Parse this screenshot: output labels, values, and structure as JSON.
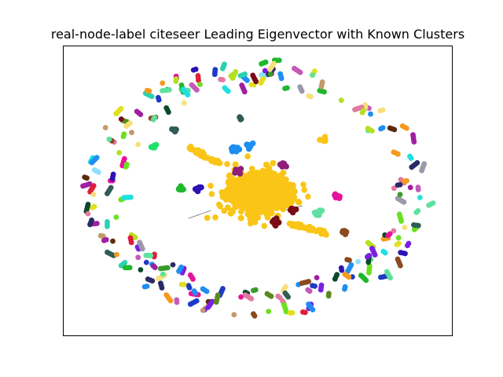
{
  "chart_data": {
    "type": "scatter",
    "subtype": "network-graph",
    "title": "real-node-label citeseer Leading Eigenvector with Known Clusters",
    "xlabel": "",
    "ylabel": "",
    "axes_visible": false,
    "grid": false,
    "legend": "none",
    "colors": {
      "frame": "#000000",
      "background": "#ffffff",
      "giant_component": "#fac516",
      "edge": "#6b6b6b",
      "palette": [
        "#1f8ef1",
        "#2cd1b0",
        "#8e1f7a",
        "#2c12b5",
        "#1fb82c",
        "#e6129a",
        "#7a0a18",
        "#5fe0a0",
        "#8b4a1f",
        "#8fe0ff",
        "#b5e01f",
        "#2f5c56",
        "#e01f3a",
        "#f59a1f",
        "#2a2a66",
        "#c45ab8",
        "#5a8a1f",
        "#7a1fe0",
        "#1fe0e0",
        "#e07aa0",
        "#5a2a0a",
        "#9a9aaa",
        "#c49a6a",
        "#3a9a2a",
        "#e0e01f",
        "#0a4a2a",
        "#a01fa0",
        "#1f3ac4",
        "#f5e07a",
        "#6ae01f"
      ]
    }
  }
}
